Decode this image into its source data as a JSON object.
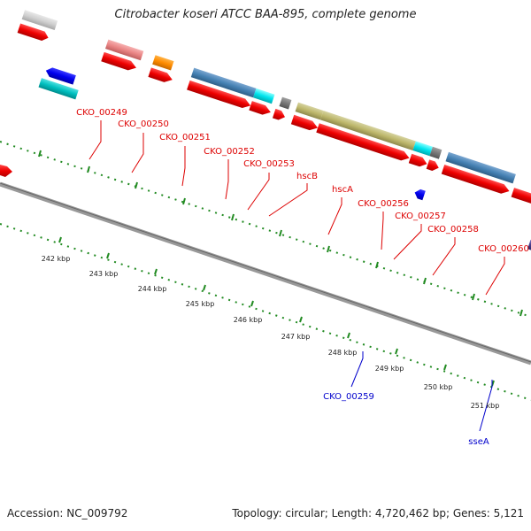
{
  "title": "Citrobacter koseri ATCC BAA-895, complete genome",
  "accession": "Accession: NC_009792",
  "topology": "Topology: circular; Length: 4,720,462 bp; Genes: 5,121",
  "kbp_labels": [
    "242 kbp",
    "243 kbp",
    "244 kbp",
    "245 kbp",
    "246 kbp",
    "247 kbp",
    "248 kbp",
    "249 kbp",
    "250 kbp",
    "251 kbp"
  ],
  "gene_labels_top": [
    "CKO_00249",
    "CKO_00250",
    "CKO_00251",
    "CKO_00252",
    "CKO_00253",
    "hscB",
    "hscA",
    "CKO_00256",
    "CKO_00257",
    "CKO_00258",
    "CKO_00260"
  ],
  "gene_labels_bottom": [
    "CKO_00259",
    "sseA"
  ],
  "colors": {
    "forward_label": "#dd0000",
    "reverse_label": "#0000cc",
    "cds": "#ee0000",
    "backbone": "#888888",
    "tick": "#228b22"
  }
}
